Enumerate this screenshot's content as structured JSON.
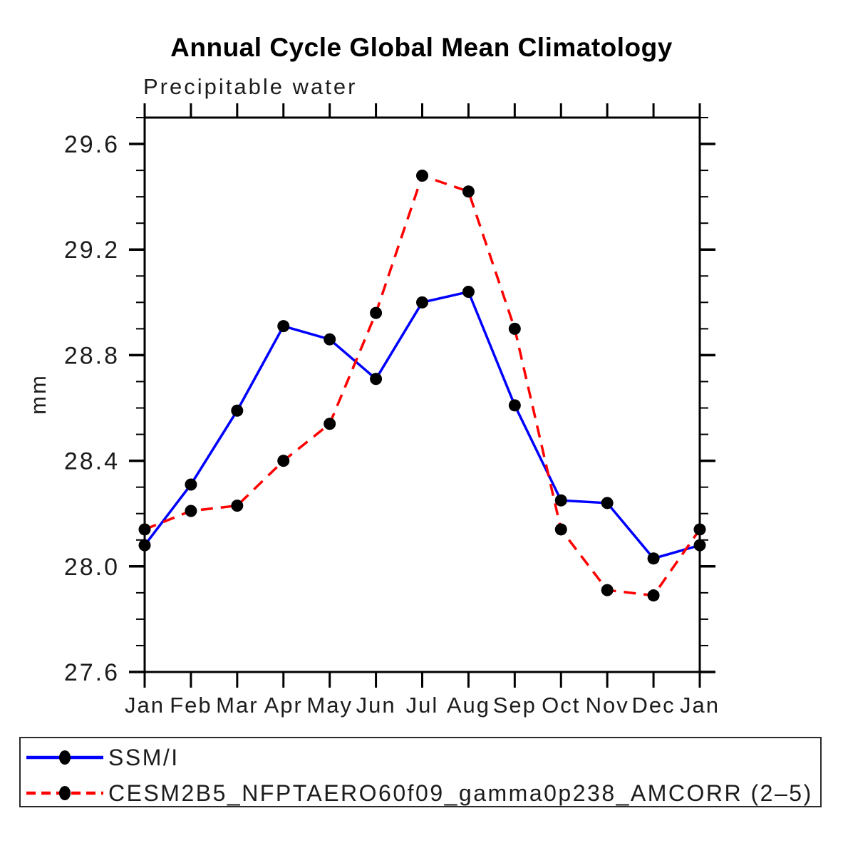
{
  "title": "Annual Cycle Global Mean Climatology",
  "subtitle": "Precipitable water",
  "chart_data": {
    "type": "line",
    "title": "Annual Cycle Global Mean Climatology",
    "subtitle": "Precipitable water",
    "xlabel": "",
    "ylabel": "mm",
    "categories": [
      "Jan",
      "Feb",
      "Mar",
      "Apr",
      "May",
      "Jun",
      "Jul",
      "Aug",
      "Sep",
      "Oct",
      "Nov",
      "Dec",
      "Jan"
    ],
    "ylim": [
      27.6,
      29.7
    ],
    "ytick_major": [
      27.6,
      28.0,
      28.4,
      28.8,
      29.2,
      29.6
    ],
    "ytick_minor_step": 0.1,
    "grid": false,
    "legend_position": "bottom",
    "marker": "filled-circle",
    "marker_color": "#000000",
    "axis_color": "#000000",
    "series": [
      {
        "name": "SSM/I",
        "color": "#0000ff",
        "style": "solid",
        "values": [
          28.08,
          28.31,
          28.59,
          28.91,
          28.86,
          28.71,
          29.0,
          29.04,
          28.61,
          28.25,
          28.24,
          28.03,
          28.08
        ]
      },
      {
        "name": "CESM2B5_NFPTAERO60f09_gamma0p238_AMCORR (2–5)",
        "color": "#ff0000",
        "style": "dashed",
        "values": [
          28.14,
          28.21,
          28.23,
          28.4,
          28.54,
          28.96,
          29.48,
          29.42,
          28.9,
          28.14,
          27.91,
          27.89,
          28.14
        ]
      }
    ]
  }
}
